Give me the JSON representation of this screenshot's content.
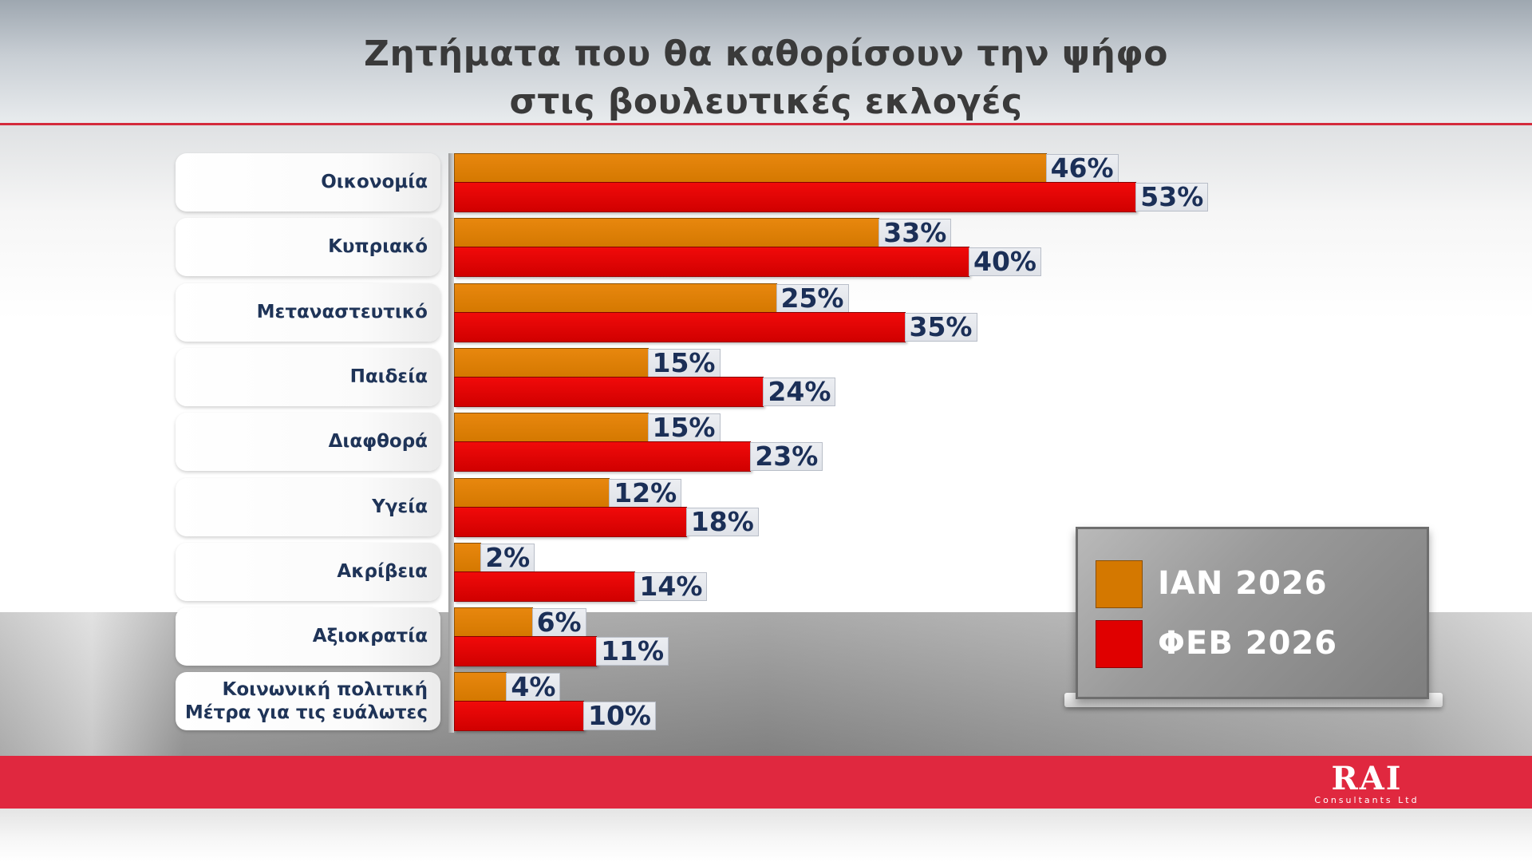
{
  "title_line1": "Ζητήματα που θα καθορίσουν την ψήφο",
  "title_line2": "στις βουλευτικές εκλογές",
  "colors": {
    "jan": "#d47800",
    "feb": "#e00000",
    "accent": "#e0283f"
  },
  "legend": {
    "jan_label": "ΙΑΝ 2026",
    "feb_label": "ΦΕΒ 2026"
  },
  "logo": {
    "main": "RAI",
    "sub": "Consultants Ltd"
  },
  "chart_data": {
    "type": "bar",
    "orientation": "horizontal",
    "categories": [
      "Οικονομία",
      "Κυπριακό",
      "Μεταναστευτικό",
      "Παιδεία",
      "Διαφθορά",
      "Υγεία",
      "Ακρίβεια",
      "Αξιοκρατία",
      "Κοινωνική πολιτική\nΜέτρα για τις ευάλωτες"
    ],
    "series": [
      {
        "name": "ΙΑΝ 2026",
        "values": [
          46,
          33,
          25,
          15,
          15,
          12,
          2,
          6,
          4
        ]
      },
      {
        "name": "ΦΕΒ 2026",
        "values": [
          53,
          40,
          35,
          24,
          23,
          18,
          14,
          11,
          10
        ]
      }
    ],
    "value_labels": {
      "jan": [
        "46%",
        "33%",
        "25%",
        "15%",
        "15%",
        "12%",
        "2%",
        "6%",
        "4%"
      ],
      "feb": [
        "53%",
        "40%",
        "35%",
        "24%",
        "23%",
        "18%",
        "14%",
        "11%",
        "10%"
      ]
    },
    "xlim": [
      0,
      53
    ],
    "legend_position": "bottom-right"
  }
}
